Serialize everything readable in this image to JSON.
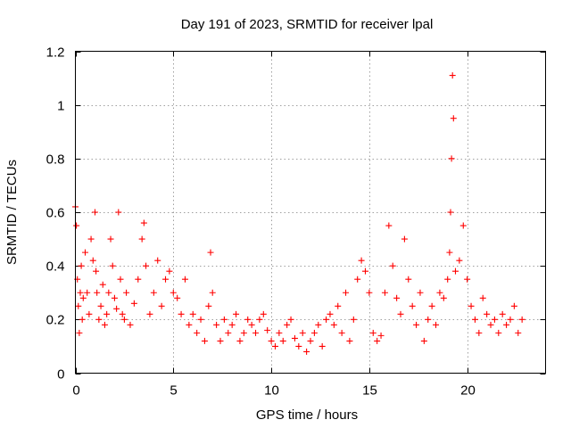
{
  "chart_data": {
    "type": "scatter",
    "title": "Day 191 of 2023, SRMTID for receiver lpal",
    "xlabel": "GPS time / hours",
    "ylabel": "SRMTID / TECUs",
    "xlim": [
      0,
      24
    ],
    "ylim": [
      0,
      1.2
    ],
    "xticks": [
      0,
      5,
      10,
      15,
      20
    ],
    "yticks": [
      0,
      0.2,
      0.4,
      0.6,
      0.8,
      1,
      1.2
    ],
    "xtick_labels": [
      "0",
      "5",
      "10",
      "15",
      "20"
    ],
    "ytick_labels": [
      "0",
      "0.2",
      "0.4",
      "0.6",
      "0.8",
      "1",
      "1.2"
    ],
    "grid": true,
    "marker": "+",
    "marker_color": "#ff0000",
    "series": [
      {
        "name": "SRMTID",
        "x": [
          0.0,
          0.05,
          0.1,
          0.15,
          0.2,
          0.25,
          0.3,
          0.35,
          0.4,
          0.5,
          0.6,
          0.7,
          0.8,
          0.9,
          1.0,
          1.05,
          1.1,
          1.2,
          1.3,
          1.4,
          1.5,
          1.6,
          1.7,
          1.8,
          1.9,
          2.0,
          2.1,
          2.2,
          2.3,
          2.4,
          2.5,
          2.6,
          2.8,
          3.0,
          3.2,
          3.4,
          3.5,
          3.6,
          3.8,
          4.0,
          4.2,
          4.4,
          4.6,
          4.8,
          5.0,
          5.2,
          5.4,
          5.6,
          5.8,
          6.0,
          6.2,
          6.4,
          6.6,
          6.8,
          6.9,
          7.0,
          7.2,
          7.4,
          7.6,
          7.8,
          8.0,
          8.2,
          8.4,
          8.6,
          8.8,
          9.0,
          9.2,
          9.4,
          9.6,
          9.8,
          10.0,
          10.2,
          10.4,
          10.6,
          10.8,
          11.0,
          11.2,
          11.4,
          11.6,
          11.8,
          12.0,
          12.2,
          12.4,
          12.6,
          12.8,
          13.0,
          13.2,
          13.4,
          13.6,
          13.8,
          14.0,
          14.2,
          14.4,
          14.6,
          14.8,
          15.0,
          15.2,
          15.4,
          15.6,
          15.8,
          16.0,
          16.2,
          16.4,
          16.6,
          16.8,
          17.0,
          17.2,
          17.4,
          17.6,
          17.8,
          18.0,
          18.2,
          18.4,
          18.6,
          18.8,
          19.0,
          19.1,
          19.15,
          19.2,
          19.25,
          19.3,
          19.4,
          19.6,
          19.8,
          20.0,
          20.2,
          20.4,
          20.6,
          20.8,
          21.0,
          21.2,
          21.4,
          21.6,
          21.8,
          22.0,
          22.2,
          22.4,
          22.6,
          22.8
        ],
        "y": [
          0.62,
          0.55,
          0.35,
          0.25,
          0.15,
          0.3,
          0.4,
          0.2,
          0.28,
          0.45,
          0.3,
          0.22,
          0.5,
          0.42,
          0.6,
          0.38,
          0.3,
          0.2,
          0.25,
          0.33,
          0.18,
          0.22,
          0.3,
          0.5,
          0.4,
          0.28,
          0.24,
          0.6,
          0.35,
          0.22,
          0.2,
          0.3,
          0.18,
          0.26,
          0.35,
          0.5,
          0.56,
          0.4,
          0.22,
          0.3,
          0.42,
          0.25,
          0.35,
          0.38,
          0.3,
          0.28,
          0.22,
          0.35,
          0.18,
          0.22,
          0.15,
          0.2,
          0.12,
          0.25,
          0.45,
          0.3,
          0.18,
          0.12,
          0.2,
          0.15,
          0.18,
          0.22,
          0.12,
          0.15,
          0.2,
          0.18,
          0.15,
          0.2,
          0.22,
          0.16,
          0.12,
          0.1,
          0.15,
          0.12,
          0.18,
          0.2,
          0.13,
          0.1,
          0.15,
          0.08,
          0.12,
          0.15,
          0.18,
          0.1,
          0.2,
          0.22,
          0.18,
          0.25,
          0.15,
          0.3,
          0.12,
          0.2,
          0.35,
          0.42,
          0.38,
          0.3,
          0.15,
          0.12,
          0.14,
          0.3,
          0.55,
          0.4,
          0.28,
          0.22,
          0.5,
          0.35,
          0.25,
          0.18,
          0.3,
          0.12,
          0.2,
          0.25,
          0.18,
          0.3,
          0.28,
          0.35,
          0.45,
          0.6,
          0.8,
          1.11,
          0.95,
          0.38,
          0.42,
          0.55,
          0.35,
          0.25,
          0.2,
          0.15,
          0.28,
          0.22,
          0.18,
          0.2,
          0.15,
          0.22,
          0.18,
          0.2,
          0.25,
          0.15,
          0.2
        ]
      }
    ]
  }
}
